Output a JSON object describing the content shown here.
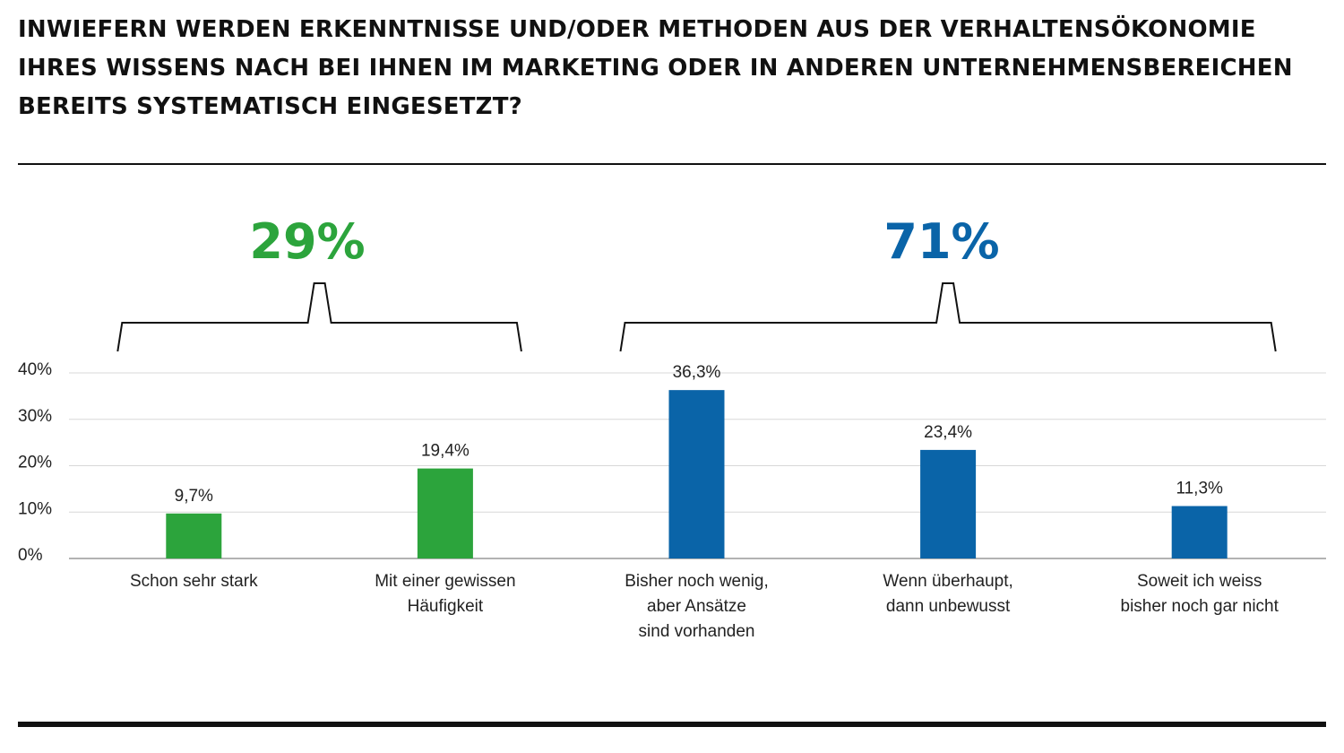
{
  "title_lines": [
    "INWIEFERN WERDEN ERKENNTNISSE UND/ODER METHODEN AUS DER VERHALTENSÖKONOMIE",
    "IHRES WISSENS NACH BEI IHNEN IM MARKETING ODER IN ANDEREN UNTERNEHMENSBEREICHEN",
    "BEREITS SYSTEMATISCH EINGESETZT?"
  ],
  "groups": [
    {
      "total_label": "29%",
      "color": "#2ca43c",
      "categories": [
        0,
        1
      ]
    },
    {
      "total_label": "71%",
      "color": "#0a64a8",
      "categories": [
        2,
        3,
        4
      ]
    }
  ],
  "chart_data": {
    "type": "bar",
    "categories": [
      [
        "Schon sehr stark"
      ],
      [
        "Mit einer gewissen",
        "Häufigkeit"
      ],
      [
        "Bisher noch wenig,",
        "aber Ansätze",
        "sind vorhanden"
      ],
      [
        "Wenn überhaupt,",
        "dann unbewusst"
      ],
      [
        "Soweit ich weiss",
        "bisher noch gar nicht"
      ]
    ],
    "values": [
      9.7,
      19.4,
      36.3,
      23.4,
      11.3
    ],
    "value_labels": [
      "9,7%",
      "19,4%",
      "36,3%",
      "23,4%",
      "11,3%"
    ],
    "bar_colors": [
      "#2ca43c",
      "#2ca43c",
      "#0a64a8",
      "#0a64a8",
      "#0a64a8"
    ],
    "yticks": [
      0,
      10,
      20,
      30,
      40
    ],
    "ytick_labels": [
      "0%",
      "10%",
      "20%",
      "30%",
      "40%"
    ],
    "ylim": [
      0,
      40
    ],
    "grid": true,
    "legend": "none"
  }
}
